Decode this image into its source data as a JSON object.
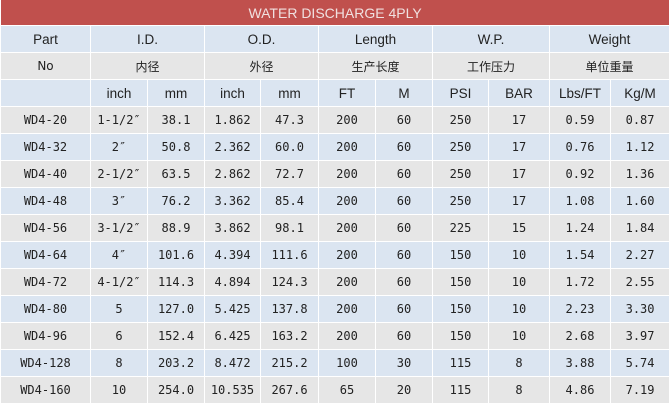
{
  "title": "WATER DISCHARGE 4PLY",
  "colors": {
    "title_bg": "#c0504d",
    "row_blue": "#dbe5f1",
    "row_gray": "#e6e6e6"
  },
  "header": {
    "row1": [
      "Part",
      "I.D.",
      "O.D.",
      "Length",
      "W.P.",
      "Weight"
    ],
    "row2": [
      "No",
      "内径",
      "外径",
      "生产长度",
      "工作压力",
      "单位重量"
    ],
    "row3": [
      "",
      "inch",
      "mm",
      "inch",
      "mm",
      "FT",
      "M",
      "PSI",
      "BAR",
      "Lbs/FT",
      "Kg/M"
    ]
  },
  "rows": [
    [
      "WD4-20",
      "1-1/2″",
      "38.1",
      "1.862",
      "47.3",
      "200",
      "60",
      "250",
      "17",
      "0.59",
      "0.87"
    ],
    [
      "WD4-32",
      "2″",
      "50.8",
      "2.362",
      "60.0",
      "200",
      "60",
      "250",
      "17",
      "0.76",
      "1.12"
    ],
    [
      "WD4-40",
      "2-1/2″",
      "63.5",
      "2.862",
      "72.7",
      "200",
      "60",
      "250",
      "17",
      "0.92",
      "1.36"
    ],
    [
      "WD4-48",
      "3″",
      "76.2",
      "3.362",
      "85.4",
      "200",
      "60",
      "250",
      "17",
      "1.08",
      "1.60"
    ],
    [
      "WD4-56",
      "3-1/2″",
      "88.9",
      "3.862",
      "98.1",
      "200",
      "60",
      "225",
      "15",
      "1.24",
      "1.84"
    ],
    [
      "WD4-64",
      "4″",
      "101.6",
      "4.394",
      "111.6",
      "200",
      "60",
      "150",
      "10",
      "1.54",
      "2.27"
    ],
    [
      "WD4-72",
      "4-1/2″",
      "114.3",
      "4.894",
      "124.3",
      "200",
      "60",
      "150",
      "10",
      "1.72",
      "2.55"
    ],
    [
      "WD4-80",
      "5",
      "127.0",
      "5.425",
      "137.8",
      "200",
      "60",
      "150",
      "10",
      "2.23",
      "3.30"
    ],
    [
      "WD4-96",
      "6",
      "152.4",
      "6.425",
      "163.2",
      "200",
      "60",
      "150",
      "10",
      "2.68",
      "3.97"
    ],
    [
      "WD4-128",
      "8",
      "203.2",
      "8.472",
      "215.2",
      "100",
      "30",
      "115",
      "8",
      "3.88",
      "5.74"
    ],
    [
      "WD4-160",
      "10",
      "254.0",
      "10.535",
      "267.6",
      "65",
      "20",
      "115",
      "8",
      "4.86",
      "7.19"
    ]
  ]
}
